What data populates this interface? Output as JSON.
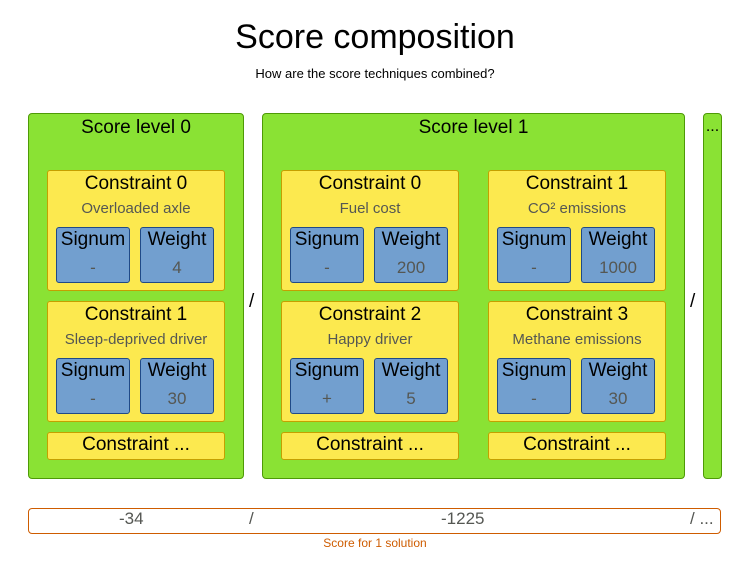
{
  "title": "Score composition",
  "subtitle": "How are the score techniques combined?",
  "levels": [
    {
      "title": "Score level 0",
      "constraints": [
        {
          "title": "Constraint 0",
          "name": "Overloaded axle",
          "signum_label": "Signum",
          "signum": "-",
          "weight_label": "Weight",
          "weight": "4"
        },
        {
          "title": "Constraint 1",
          "name": "Sleep-deprived driver",
          "signum_label": "Signum",
          "signum": "-",
          "weight_label": "Weight",
          "weight": "30"
        }
      ],
      "more": "Constraint ..."
    },
    {
      "title": "Score level 1",
      "constraints": [
        {
          "title": "Constraint 0",
          "name": "Fuel cost",
          "signum_label": "Signum",
          "signum": "-",
          "weight_label": "Weight",
          "weight": "200"
        },
        {
          "title": "Constraint 1",
          "name": "CO² emissions",
          "signum_label": "Signum",
          "signum": "-",
          "weight_label": "Weight",
          "weight": "1000"
        },
        {
          "title": "Constraint 2",
          "name": "Happy driver",
          "signum_label": "Signum",
          "signum": "+",
          "weight_label": "Weight",
          "weight": "5"
        },
        {
          "title": "Constraint 3",
          "name": "Methane emissions",
          "signum_label": "Signum",
          "signum": "-",
          "weight_label": "Weight",
          "weight": "30"
        }
      ],
      "more_left": "Constraint ...",
      "more_right": "Constraint ..."
    }
  ],
  "level_more": "...",
  "separator": "/",
  "score": {
    "level0": "-34",
    "level1": "-1225",
    "sep1": "/",
    "sep_more": "/ ...",
    "caption": "Score for 1 solution"
  }
}
